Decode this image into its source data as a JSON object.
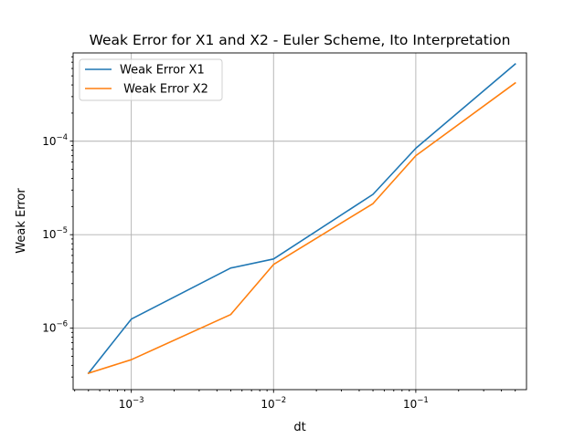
{
  "chart_data": {
    "type": "line",
    "title": "Weak Error for X1 and X2 - Euler Scheme, Ito Interpretation",
    "xlabel": "dt",
    "ylabel": "Weak Error",
    "xscale": "log",
    "yscale": "log",
    "xlim": [
      0.00039,
      0.6
    ],
    "ylim": [
      2.2e-07,
      0.00088
    ],
    "x": [
      0.0005,
      0.001,
      0.005,
      0.01,
      0.05,
      0.1,
      0.5
    ],
    "series": [
      {
        "name": "Weak Error X1",
        "color": "#1f77b4",
        "values": [
          3.3e-07,
          1.25e-06,
          4.4e-06,
          5.5e-06,
          2.7e-05,
          8.4e-05,
          0.00067
        ]
      },
      {
        "name": " Weak Error X2",
        "color": "#ff7f0e",
        "values": [
          3.3e-07,
          4.6e-07,
          1.4e-06,
          4.8e-06,
          2.15e-05,
          7e-05,
          0.00042
        ]
      }
    ],
    "x_ticks": [
      {
        "value": 0.001,
        "base": "10",
        "exp": "−3"
      },
      {
        "value": 0.01,
        "base": "10",
        "exp": "−2"
      },
      {
        "value": 0.1,
        "base": "10",
        "exp": "−1"
      }
    ],
    "y_ticks": [
      {
        "value": 1e-06,
        "base": "10",
        "exp": "−6"
      },
      {
        "value": 1e-05,
        "base": "10",
        "exp": "−5"
      },
      {
        "value": 0.0001,
        "base": "10",
        "exp": "−4"
      }
    ],
    "grid": true,
    "legend_position": "upper-left"
  }
}
